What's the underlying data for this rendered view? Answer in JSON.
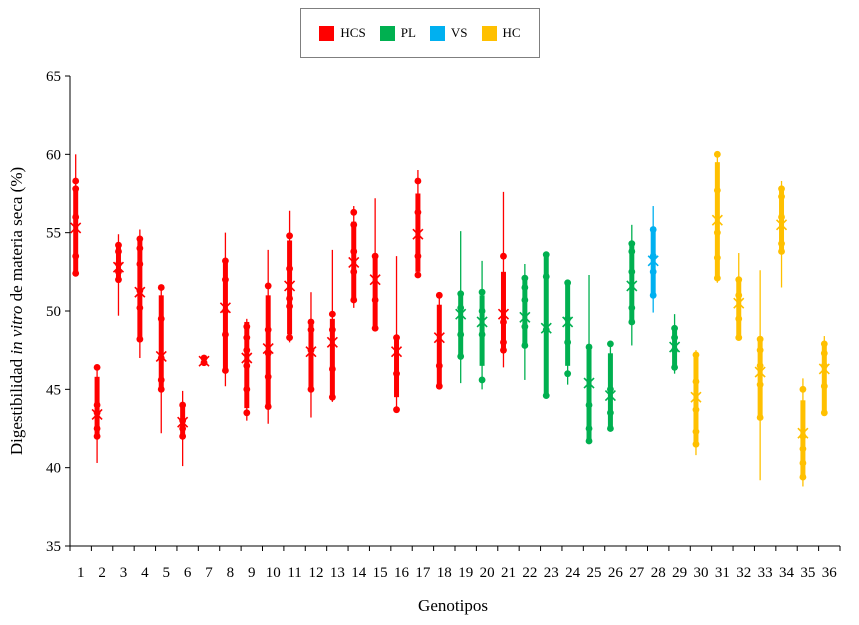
{
  "chart_data": {
    "type": "boxplot",
    "title": "",
    "xlabel": "Genotipos",
    "ylabel_prefix": "Digestibilidad ",
    "ylabel_italic": "in vitro",
    "ylabel_suffix": " de materia seca (%)",
    "ylim": [
      35,
      65
    ],
    "yticks": [
      35,
      40,
      45,
      50,
      55,
      60,
      65
    ],
    "legend_position": "top-center",
    "groups": [
      {
        "name": "HCS",
        "color": "#ff0000"
      },
      {
        "name": "PL",
        "color": "#00b050"
      },
      {
        "name": "VS",
        "color": "#00b0f0"
      },
      {
        "name": "HC",
        "color": "#ffc000"
      }
    ],
    "genotypes": [
      {
        "label": "1",
        "group": "HCS",
        "min": 52.3,
        "q1": 52.5,
        "q3": 57.8,
        "max": 60.0,
        "mean": 55.3,
        "points": [
          52.4,
          53.5,
          56.0,
          57.8,
          58.3
        ]
      },
      {
        "label": "2",
        "group": "HCS",
        "min": 40.3,
        "q1": 42.0,
        "q3": 45.8,
        "max": 46.5,
        "mean": 43.4,
        "points": [
          42.0,
          42.5,
          43.5,
          44.0,
          46.4
        ]
      },
      {
        "label": "3",
        "group": "HCS",
        "min": 49.7,
        "q1": 52.0,
        "q3": 54.3,
        "max": 54.9,
        "mean": 52.8,
        "points": [
          52.0,
          52.5,
          53.0,
          53.8,
          54.2
        ]
      },
      {
        "label": "4",
        "group": "HCS",
        "min": 47.0,
        "q1": 48.2,
        "q3": 54.6,
        "max": 55.2,
        "mean": 51.2,
        "points": [
          48.2,
          50.2,
          51.3,
          53.0,
          54.0,
          54.6
        ]
      },
      {
        "label": "5",
        "group": "HCS",
        "min": 42.2,
        "q1": 45.0,
        "q3": 51.0,
        "max": 51.5,
        "mean": 47.1,
        "points": [
          45.0,
          45.6,
          47.0,
          49.5,
          51.5
        ]
      },
      {
        "label": "6",
        "group": "HCS",
        "min": 40.1,
        "q1": 42.0,
        "q3": 44.0,
        "max": 44.9,
        "mean": 42.9,
        "points": [
          42.0,
          42.5,
          43.0,
          44.0
        ]
      },
      {
        "label": "7",
        "group": "HCS",
        "min": 46.6,
        "q1": 46.7,
        "q3": 47.0,
        "max": 47.1,
        "mean": 46.8,
        "points": [
          46.7,
          47.0
        ]
      },
      {
        "label": "8",
        "group": "HCS",
        "min": 45.2,
        "q1": 46.2,
        "q3": 53.2,
        "max": 55.0,
        "mean": 50.2,
        "points": [
          46.2,
          48.5,
          50.0,
          52.0,
          53.2
        ]
      },
      {
        "label": "9",
        "group": "HCS",
        "min": 43.0,
        "q1": 43.8,
        "q3": 49.3,
        "max": 49.5,
        "mean": 47.0,
        "points": [
          43.5,
          45.0,
          46.5,
          47.5,
          48.3,
          49.0
        ]
      },
      {
        "label": "10",
        "group": "HCS",
        "min": 42.8,
        "q1": 44.0,
        "q3": 51.0,
        "max": 53.9,
        "mean": 47.6,
        "points": [
          43.9,
          45.8,
          47.3,
          48.8,
          51.6
        ]
      },
      {
        "label": "11",
        "group": "HCS",
        "min": 48.0,
        "q1": 48.5,
        "q3": 54.5,
        "max": 56.4,
        "mean": 51.6,
        "points": [
          48.3,
          50.3,
          50.8,
          52.7,
          54.8
        ]
      },
      {
        "label": "12",
        "group": "HCS",
        "min": 43.2,
        "q1": 45.0,
        "q3": 49.3,
        "max": 51.2,
        "mean": 47.4,
        "points": [
          45.0,
          47.5,
          48.8,
          49.3
        ]
      },
      {
        "label": "13",
        "group": "HCS",
        "min": 44.2,
        "q1": 44.6,
        "q3": 49.5,
        "max": 53.9,
        "mean": 48.0,
        "points": [
          44.5,
          46.3,
          48.8,
          49.8
        ]
      },
      {
        "label": "14",
        "group": "HCS",
        "min": 50.2,
        "q1": 50.8,
        "q3": 55.7,
        "max": 56.7,
        "mean": 53.1,
        "points": [
          50.7,
          52.5,
          53.8,
          55.5,
          56.3
        ]
      },
      {
        "label": "15",
        "group": "HCS",
        "min": 48.8,
        "q1": 49.0,
        "q3": 53.5,
        "max": 57.2,
        "mean": 52.0,
        "points": [
          48.9,
          50.7,
          53.5
        ]
      },
      {
        "label": "16",
        "group": "HCS",
        "min": 43.6,
        "q1": 44.5,
        "q3": 48.3,
        "max": 53.5,
        "mean": 47.4,
        "points": [
          43.7,
          46.0,
          48.3
        ]
      },
      {
        "label": "17",
        "group": "HCS",
        "min": 52.2,
        "q1": 52.5,
        "q3": 57.5,
        "max": 59.0,
        "mean": 54.9,
        "points": [
          52.3,
          53.5,
          56.3,
          58.3
        ]
      },
      {
        "label": "18",
        "group": "HCS",
        "min": 45.0,
        "q1": 45.3,
        "q3": 50.4,
        "max": 51.1,
        "mean": 48.3,
        "points": [
          45.2,
          46.5,
          51.0
        ]
      },
      {
        "label": "19",
        "group": "PL",
        "min": 45.4,
        "q1": 47.2,
        "q3": 51.0,
        "max": 55.1,
        "mean": 49.8,
        "points": [
          47.1,
          48.5,
          50.2,
          51.1
        ]
      },
      {
        "label": "20",
        "group": "PL",
        "min": 45.0,
        "q1": 46.5,
        "q3": 51.0,
        "max": 53.2,
        "mean": 49.3,
        "points": [
          45.6,
          48.5,
          50.0,
          51.2
        ]
      },
      {
        "label": "21",
        "group": "HCS",
        "min": 46.4,
        "q1": 47.6,
        "q3": 52.5,
        "max": 57.6,
        "mean": 49.8,
        "points": [
          47.5,
          48.0,
          49.3,
          53.5
        ]
      },
      {
        "label": "22",
        "group": "PL",
        "min": 45.6,
        "q1": 47.8,
        "q3": 52.0,
        "max": 53.0,
        "mean": 49.6,
        "points": [
          47.8,
          49.0,
          50.7,
          51.5,
          52.1
        ]
      },
      {
        "label": "23",
        "group": "PL",
        "min": 44.5,
        "q1": 44.6,
        "q3": 53.6,
        "max": 53.7,
        "mean": 48.9,
        "points": [
          44.6,
          48.8,
          52.2,
          53.6
        ]
      },
      {
        "label": "24",
        "group": "PL",
        "min": 45.3,
        "q1": 46.5,
        "q3": 51.9,
        "max": 52.0,
        "mean": 49.3,
        "points": [
          46.0,
          48.0,
          49.5,
          51.8
        ]
      },
      {
        "label": "25",
        "group": "PL",
        "min": 41.6,
        "q1": 41.8,
        "q3": 47.8,
        "max": 52.3,
        "mean": 45.4,
        "points": [
          41.7,
          42.5,
          44.0,
          47.7
        ]
      },
      {
        "label": "26",
        "group": "PL",
        "min": 42.3,
        "q1": 42.5,
        "q3": 47.3,
        "max": 47.9,
        "mean": 44.6,
        "points": [
          42.5,
          43.5,
          45.0,
          47.9
        ]
      },
      {
        "label": "27",
        "group": "PL",
        "min": 47.8,
        "q1": 49.3,
        "q3": 54.3,
        "max": 55.5,
        "mean": 51.6,
        "points": [
          49.3,
          50.2,
          52.5,
          53.8,
          54.3
        ]
      },
      {
        "label": "28",
        "group": "VS",
        "min": 49.9,
        "q1": 51.0,
        "q3": 55.3,
        "max": 56.7,
        "mean": 53.2,
        "points": [
          51.0,
          52.5,
          53.5,
          55.2
        ]
      },
      {
        "label": "29",
        "group": "PL",
        "min": 46.0,
        "q1": 46.4,
        "q3": 48.9,
        "max": 49.8,
        "mean": 47.7,
        "points": [
          46.4,
          47.5,
          48.3,
          48.9
        ]
      },
      {
        "label": "30",
        "group": "HC",
        "min": 40.8,
        "q1": 41.5,
        "q3": 47.3,
        "max": 47.5,
        "mean": 44.5,
        "points": [
          41.5,
          42.3,
          43.7,
          45.5,
          47.2
        ]
      },
      {
        "label": "31",
        "group": "HC",
        "min": 51.8,
        "q1": 52.1,
        "q3": 59.5,
        "max": 60.0,
        "mean": 55.8,
        "points": [
          52.1,
          53.4,
          55.0,
          57.7,
          60.0
        ]
      },
      {
        "label": "32",
        "group": "HC",
        "min": 48.2,
        "q1": 48.3,
        "q3": 52.1,
        "max": 53.7,
        "mean": 50.5,
        "points": [
          48.3,
          49.5,
          51.0,
          52.0
        ]
      },
      {
        "label": "33",
        "group": "HC",
        "min": 39.2,
        "q1": 43.2,
        "q3": 48.3,
        "max": 52.6,
        "mean": 46.1,
        "points": [
          43.2,
          45.3,
          46.5,
          47.5,
          48.2
        ]
      },
      {
        "label": "34",
        "group": "HC",
        "min": 51.5,
        "q1": 53.8,
        "q3": 57.8,
        "max": 58.3,
        "mean": 55.5,
        "points": [
          53.8,
          54.3,
          56.0,
          57.3,
          57.8
        ]
      },
      {
        "label": "35",
        "group": "HC",
        "min": 38.8,
        "q1": 39.3,
        "q3": 44.3,
        "max": 45.7,
        "mean": 42.2,
        "points": [
          39.4,
          40.3,
          41.2,
          42.0,
          45.0
        ]
      },
      {
        "label": "36",
        "group": "HC",
        "min": 43.4,
        "q1": 43.6,
        "q3": 47.9,
        "max": 48.4,
        "mean": 46.3,
        "points": [
          43.5,
          45.2,
          46.5,
          47.3,
          47.9
        ]
      }
    ]
  }
}
